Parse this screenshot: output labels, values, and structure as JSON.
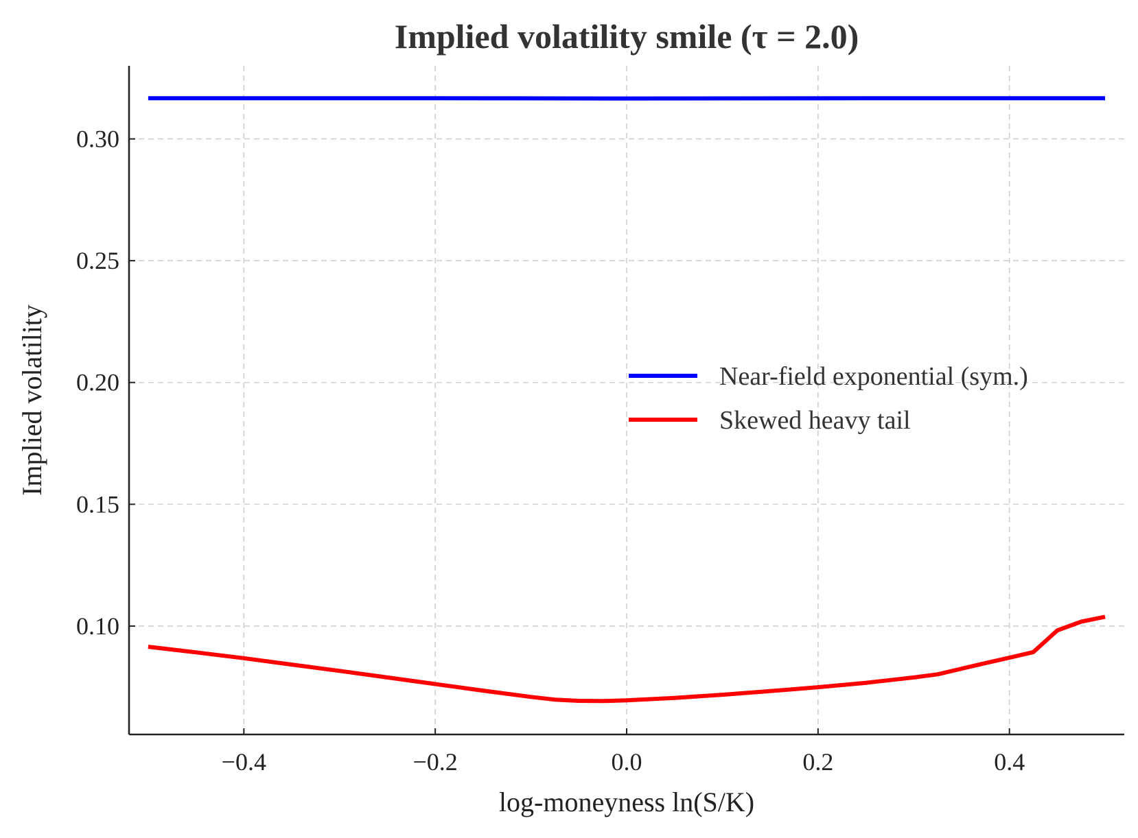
{
  "chart_data": {
    "type": "line",
    "title": "Implied volatility smile  (τ = 2.0)",
    "xlabel": "log-moneyness  ln(S/K)",
    "ylabel": "Implied volatility",
    "xlim": [
      -0.52,
      0.52
    ],
    "ylim": [
      0.0555,
      0.33
    ],
    "x_ticks": [
      -0.4,
      -0.2,
      0.0,
      0.2,
      0.4
    ],
    "x_tick_labels": [
      "−0.4",
      "−0.2",
      "0.0",
      "0.2",
      "0.4"
    ],
    "y_ticks": [
      0.1,
      0.15,
      0.2,
      0.25,
      0.3
    ],
    "y_tick_labels": [
      "0.10",
      "0.15",
      "0.20",
      "0.25",
      "0.30"
    ],
    "grid": true,
    "legend_position": "center-right",
    "series": [
      {
        "name": "Near-field exponential (sym.)",
        "color": "#0000ff",
        "x": [
          -0.5,
          -0.25,
          0.0,
          0.25,
          0.5
        ],
        "y": [
          0.3167,
          0.3167,
          0.3166,
          0.3167,
          0.3167
        ]
      },
      {
        "name": "Skewed heavy tail",
        "color": "#ff0000",
        "x": [
          -0.5,
          -0.45,
          -0.4,
          -0.35,
          -0.3,
          -0.25,
          -0.2,
          -0.15,
          -0.1,
          -0.075,
          -0.05,
          -0.025,
          0.0,
          0.05,
          0.1,
          0.15,
          0.2,
          0.25,
          0.275,
          0.3,
          0.325,
          0.35,
          0.375,
          0.4,
          0.425,
          0.45,
          0.475,
          0.5
        ],
        "y": [
          0.0915,
          0.0892,
          0.0868,
          0.0842,
          0.0816,
          0.0789,
          0.0762,
          0.0735,
          0.0709,
          0.0698,
          0.0693,
          0.0692,
          0.0695,
          0.0705,
          0.0718,
          0.0733,
          0.0749,
          0.0767,
          0.0778,
          0.0789,
          0.0802,
          0.0825,
          0.0848,
          0.087,
          0.0893,
          0.0982,
          0.1018,
          0.1038
        ]
      }
    ]
  }
}
